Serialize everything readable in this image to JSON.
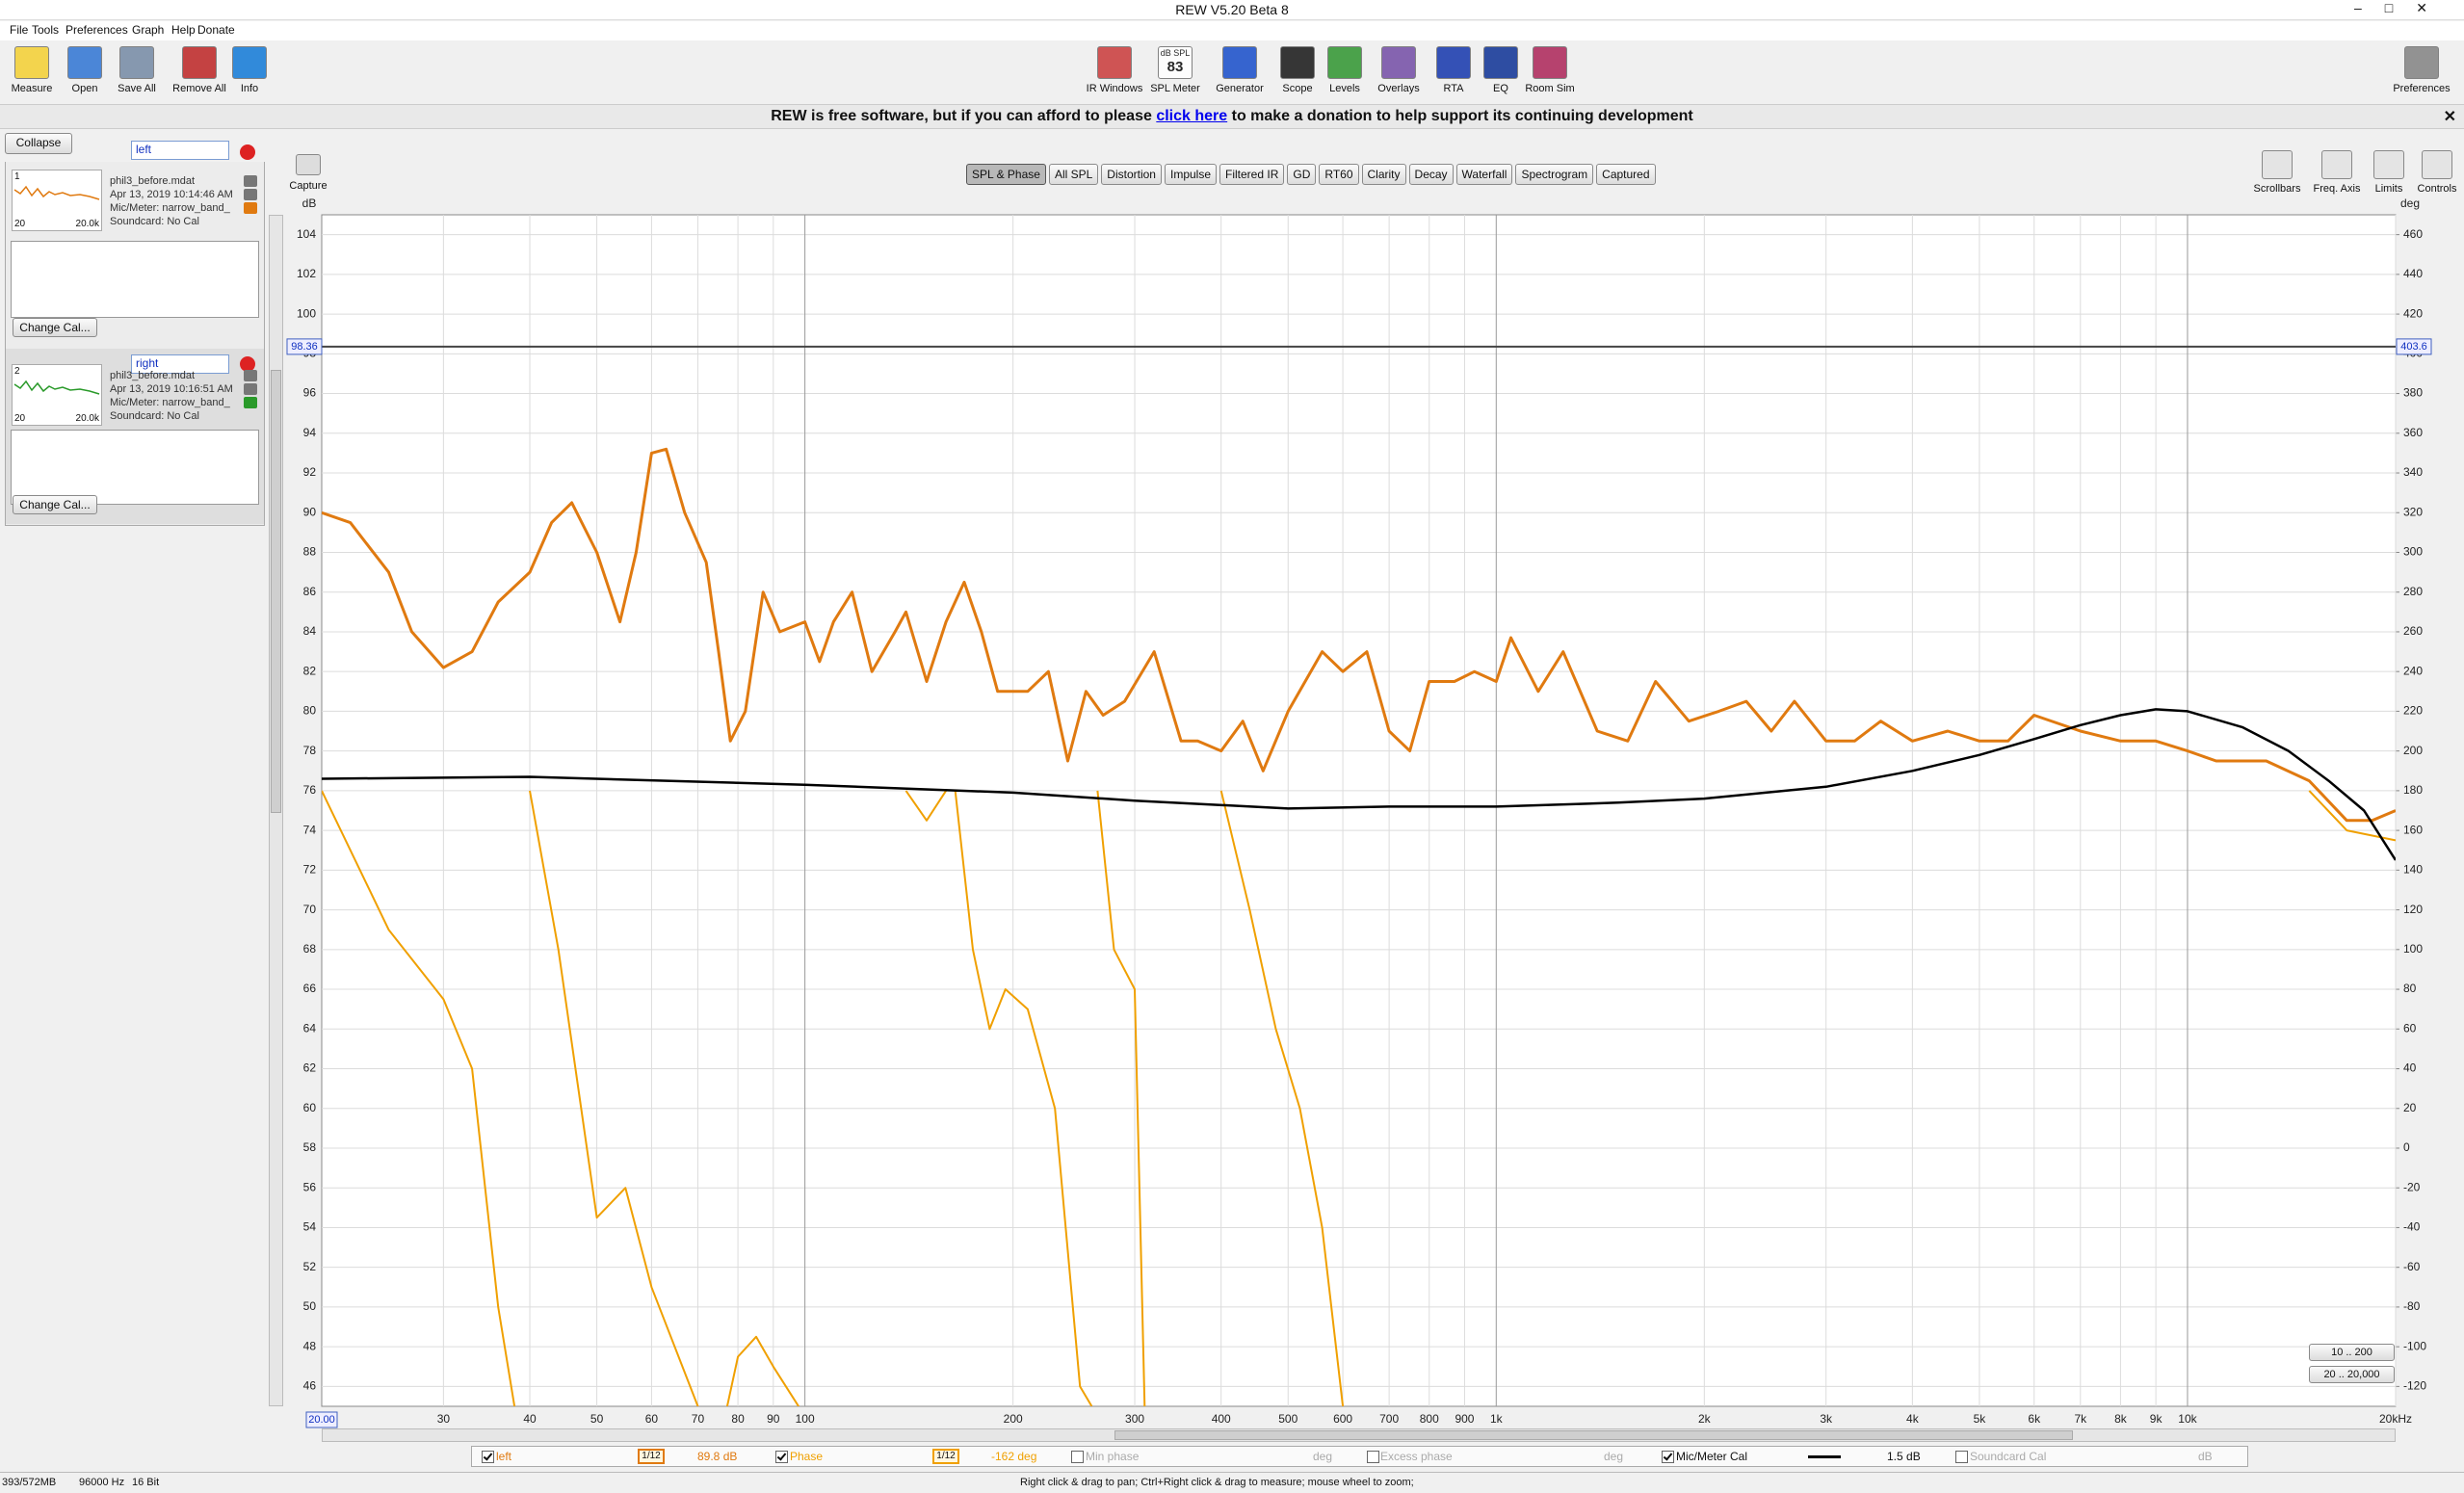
{
  "window": {
    "title": "REW V5.20 Beta 8"
  },
  "menu": [
    "File",
    "Tools",
    "Preferences",
    "Graph",
    "Help",
    "Donate"
  ],
  "toolbar": {
    "left": [
      "Measure",
      "Open",
      "Save All",
      "Remove All",
      "Info"
    ],
    "center": [
      "IR Windows",
      "SPL Meter",
      "Generator",
      "Scope",
      "Levels",
      "Overlays",
      "RTA",
      "EQ",
      "Room Sim"
    ],
    "right": [
      "Preferences"
    ],
    "spl_meter": {
      "unit": "dB SPL",
      "reading": "83"
    }
  },
  "banner": {
    "before": "REW is free software, but if you can afford to please",
    "link": "click here",
    "after": "to make a donation to help support its continuing development"
  },
  "measurements": {
    "collapse": "Collapse",
    "items": [
      {
        "index": "1",
        "filter": "left",
        "file": "phil3_before.mdat",
        "date": "Apr 13, 2019 10:14:46 AM",
        "mic": "Mic/Meter: narrow_band_",
        "soundcard": "Soundcard: No Cal",
        "thumb_start": "20",
        "thumb_end": "20.0k",
        "button": "Change Cal..."
      },
      {
        "index": "2",
        "filter": "right",
        "file": "phil3_before.mdat",
        "date": "Apr 13, 2019 10:16:51 AM",
        "mic": "Mic/Meter: narrow_band_",
        "soundcard": "Soundcard: No Cal",
        "thumb_start": "20",
        "thumb_end": "20.0k",
        "button": "Change Cal..."
      }
    ]
  },
  "graph": {
    "capture": "Capture",
    "tabs": [
      "SPL & Phase",
      "All SPL",
      "Distortion",
      "Impulse",
      "Filtered IR",
      "GD",
      "RT60",
      "Clarity",
      "Decay",
      "Waterfall",
      "Spectrogram",
      "Captured"
    ],
    "selected_tab": 0,
    "tools": [
      "Scrollbars",
      "Freq. Axis",
      "Limits",
      "Controls"
    ],
    "ranges": [
      "10 .. 200",
      "20 .. 20,000"
    ]
  },
  "chart_data": {
    "type": "line",
    "log_x": true,
    "grid": true,
    "y_label": "dB",
    "y2_label": "deg",
    "xlim": [
      20,
      20000
    ],
    "xticks": [
      30,
      40,
      50,
      60,
      70,
      80,
      90,
      100,
      200,
      300,
      400,
      500,
      600,
      700,
      800,
      900,
      {
        "value": 1000,
        "label": "1k"
      },
      {
        "value": 2000,
        "label": "2k"
      },
      {
        "value": 3000,
        "label": "3k"
      },
      {
        "value": 4000,
        "label": "4k"
      },
      {
        "value": 5000,
        "label": "5k"
      },
      {
        "value": 6000,
        "label": "6k"
      },
      {
        "value": 7000,
        "label": "7k"
      },
      {
        "value": 8000,
        "label": "8k"
      },
      {
        "value": 9000,
        "label": "9k"
      },
      {
        "value": 10000,
        "label": "10k"
      },
      {
        "value": 20000,
        "label": "20kHz"
      }
    ],
    "ylim": [
      45,
      105
    ],
    "yticks": [
      46,
      48,
      50,
      52,
      54,
      56,
      58,
      60,
      62,
      64,
      66,
      68,
      70,
      72,
      74,
      76,
      78,
      80,
      82,
      84,
      86,
      88,
      90,
      92,
      94,
      96,
      98,
      100,
      102,
      104
    ],
    "y2lim": [
      -130,
      470
    ],
    "y2ticks": [
      -120,
      -100,
      -80,
      -60,
      -40,
      -20,
      0,
      20,
      40,
      60,
      80,
      100,
      120,
      140,
      160,
      180,
      200,
      220,
      240,
      260,
      280,
      300,
      320,
      340,
      360,
      380,
      400,
      420,
      440,
      460
    ],
    "cursor": {
      "x": {
        "value": 20,
        "label": "20.00"
      },
      "y": 98.36,
      "y2": 403.6
    },
    "series": [
      {
        "name": "left",
        "color": "#e07a10",
        "smoothing": "1/12",
        "reading": "89.8 dB",
        "enabled": true,
        "x": [
          20,
          22,
          25,
          27,
          30,
          33,
          36,
          40,
          43,
          46,
          50,
          54,
          57,
          60,
          63,
          67,
          72,
          75,
          78,
          82,
          87,
          92,
          100,
          105,
          110,
          117,
          125,
          135,
          140,
          150,
          160,
          170,
          180,
          190,
          210,
          225,
          240,
          255,
          270,
          290,
          320,
          350,
          370,
          400,
          430,
          460,
          500,
          560,
          600,
          650,
          700,
          750,
          800,
          870,
          930,
          1000,
          1050,
          1150,
          1250,
          1400,
          1550,
          1700,
          1900,
          2100,
          2300,
          2500,
          2700,
          3000,
          3300,
          3600,
          4000,
          4500,
          5000,
          5500,
          6000,
          7000,
          8000,
          9000,
          10000,
          11000,
          13000,
          15000,
          17000,
          18500,
          20000
        ],
        "values": [
          90,
          89.5,
          87,
          84,
          82.2,
          83,
          85.5,
          87,
          89.5,
          90.5,
          88,
          84.5,
          88,
          93,
          93.2,
          90,
          87.5,
          83,
          78.5,
          80,
          86,
          84,
          84.5,
          82.5,
          84.5,
          86,
          82,
          84,
          85,
          81.5,
          84.5,
          86.5,
          84,
          81,
          81,
          82,
          77.5,
          81,
          79.8,
          80.5,
          83,
          78.5,
          78.5,
          78,
          79.5,
          77,
          80,
          83,
          82,
          83,
          79,
          78,
          81.5,
          81.5,
          82,
          81.5,
          83.7,
          81,
          83,
          79,
          78.5,
          81.5,
          79.5,
          80,
          80.5,
          79,
          80.5,
          78.5,
          78.5,
          79.5,
          78.5,
          79,
          78.5,
          78.5,
          79.8,
          79,
          78.5,
          78.5,
          78,
          77.5,
          77.5,
          76.5,
          74.5,
          74.5,
          75
        ]
      },
      {
        "name": "Phase",
        "color": "#f0a000",
        "axis": "y2",
        "smoothing": "1/12",
        "reading": "-162 deg",
        "enabled": true,
        "x": [
          20,
          25,
          30,
          33,
          36,
          38,
          39,
          40,
          44,
          50,
          55,
          60,
          70,
          75,
          80,
          85,
          90,
          100,
          105,
          130,
          140,
          150,
          160,
          162,
          165,
          175,
          185,
          195,
          210,
          230,
          250,
          260,
          262,
          265,
          280,
          300,
          310,
          330,
          400,
          440,
          480,
          520,
          560,
          600,
          6500,
          15000,
          17000,
          20000
        ],
        "values": [
          180,
          110,
          75,
          40,
          -80,
          -130,
          null,
          180,
          100,
          -35,
          -20,
          -70,
          -130,
          -150,
          -105,
          -95,
          -110,
          -135,
          -140,
          null,
          180,
          165,
          180,
          null,
          180,
          100,
          60,
          80,
          70,
          20,
          -120,
          -130,
          null,
          180,
          100,
          80,
          -130,
          null,
          180,
          120,
          60,
          20,
          -40,
          -130,
          null,
          180,
          160,
          155
        ]
      },
      {
        "name": "Mic/Meter Cal",
        "color": "#000000",
        "reading": "1.5 dB",
        "enabled": true,
        "x": [
          20,
          40,
          100,
          200,
          300,
          500,
          700,
          1000,
          1500,
          2000,
          3000,
          4000,
          5000,
          6000,
          7000,
          8000,
          9000,
          10000,
          12000,
          14000,
          16000,
          18000,
          20000
        ],
        "values": [
          76.6,
          76.7,
          76.3,
          75.9,
          75.5,
          75.1,
          75.2,
          75.2,
          75.4,
          75.6,
          76.2,
          77,
          77.8,
          78.6,
          79.3,
          79.8,
          80.1,
          80,
          79.2,
          78,
          76.5,
          75,
          72.5
        ]
      }
    ],
    "extra_traces": [
      {
        "name": "Min phase",
        "unit": "deg",
        "enabled": false
      },
      {
        "name": "Excess phase",
        "unit": "deg",
        "enabled": false
      },
      {
        "name": "Soundcard Cal",
        "unit": "dB",
        "enabled": false
      }
    ]
  },
  "status": {
    "memory": "393/572MB",
    "rate": "96000 Hz",
    "bits": "16 Bit",
    "hint": "Right click & drag to pan; Ctrl+Right click & drag to measure; mouse wheel to zoom;"
  }
}
